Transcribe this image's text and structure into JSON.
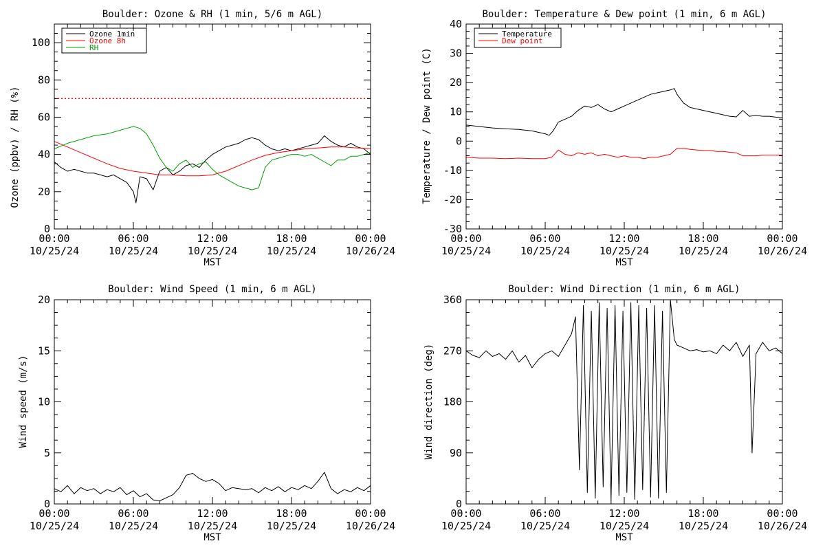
{
  "figure": {
    "x_ticks": [
      "00:00",
      "06:00",
      "12:00",
      "18:00",
      "00:00"
    ],
    "x_tick_dates": [
      "10/25/24",
      "10/25/24",
      "10/25/24",
      "10/25/24",
      "10/26/24"
    ],
    "x_label": "MST"
  },
  "colors": {
    "black": "#000000",
    "red": "#ff0000",
    "green": "#00a000"
  },
  "chart_data": [
    {
      "type": "line",
      "title": "Boulder: Ozone & RH (1 min, 5/6 m AGL)",
      "xlabel": "MST",
      "ylabel": "Ozone (ppbv) / RH (%)",
      "xlim": [
        0,
        24
      ],
      "ylim": [
        0,
        110
      ],
      "yticks": [
        0,
        20,
        40,
        60,
        80,
        100
      ],
      "legend": "top-left",
      "reference_line": {
        "y": 70,
        "style": "dotted",
        "color": "#ff0000"
      },
      "series": [
        {
          "name": "Ozone 1min",
          "color": "#000000",
          "x": [
            0,
            0.5,
            1,
            1.5,
            2,
            2.5,
            3,
            3.5,
            4,
            4.5,
            5,
            5.5,
            6,
            6.2,
            6.5,
            7,
            7.5,
            8,
            8.5,
            9,
            9.5,
            10,
            10.5,
            11,
            11.5,
            12,
            12.5,
            13,
            13.5,
            14,
            14.5,
            15,
            15.5,
            16,
            16.5,
            17,
            17.5,
            18,
            18.5,
            19,
            19.5,
            20,
            20.5,
            21,
            21.5,
            22,
            22.5,
            23,
            23.5,
            24
          ],
          "values": [
            36,
            33,
            31,
            32,
            31,
            30,
            30,
            29,
            28,
            29,
            27,
            25,
            20,
            14,
            28,
            27,
            21,
            31,
            33,
            29,
            31,
            34,
            35,
            33,
            37,
            40,
            42,
            44,
            45,
            46,
            48,
            49,
            48,
            45,
            43,
            42,
            43,
            42,
            43,
            44,
            45,
            46,
            50,
            47,
            45,
            44,
            46,
            44,
            43,
            40
          ]
        },
        {
          "name": "Ozone 8h",
          "color": "#ff0000",
          "x": [
            0,
            1,
            2,
            3,
            4,
            5,
            6,
            7,
            8,
            9,
            10,
            11,
            12,
            13,
            14,
            15,
            16,
            17,
            18,
            19,
            20,
            21,
            22,
            23,
            24
          ],
          "values": [
            47,
            44,
            41,
            38,
            35,
            32.5,
            31,
            30,
            29,
            29,
            28.5,
            28.5,
            29,
            31,
            34,
            37,
            39.5,
            41,
            42,
            43,
            43.5,
            44,
            44,
            43.5,
            43
          ]
        },
        {
          "name": "RH",
          "color": "#00a000",
          "x": [
            0,
            1,
            2,
            3,
            4,
            5,
            5.5,
            6,
            6.5,
            7,
            7.5,
            8,
            8.5,
            9,
            9.5,
            10,
            10.5,
            11,
            11.5,
            12,
            12.5,
            13,
            13.5,
            14,
            14.5,
            15,
            15.5,
            16,
            16.5,
            17,
            17.5,
            18,
            18.5,
            19,
            19.5,
            20,
            20.5,
            21,
            21.5,
            22,
            22.5,
            23,
            23.5,
            24
          ],
          "values": [
            43,
            46,
            48,
            50,
            51,
            53,
            54,
            55,
            54,
            51,
            45,
            38,
            33,
            31,
            35,
            37,
            33,
            35,
            36,
            32,
            29,
            27,
            25,
            23,
            22,
            21,
            22,
            33,
            37,
            38,
            39,
            40,
            40,
            39,
            40,
            38,
            36,
            34,
            37,
            37,
            39,
            39,
            40,
            41
          ]
        }
      ]
    },
    {
      "type": "line",
      "title": "Boulder: Temperature & Dew point (1 min, 6 m AGL)",
      "xlabel": "MST",
      "ylabel": "Temperature / Dew point (C)",
      "xlim": [
        0,
        24
      ],
      "ylim": [
        -30,
        40
      ],
      "yticks": [
        -30,
        -20,
        -10,
        0,
        10,
        20,
        30,
        40
      ],
      "legend": "top-left",
      "series": [
        {
          "name": "Temperature",
          "color": "#000000",
          "x": [
            0,
            1,
            2,
            3,
            4,
            5,
            6,
            6.3,
            6.6,
            7,
            7.5,
            8,
            8.5,
            9,
            9.5,
            10,
            10.5,
            11,
            11.5,
            12,
            12.5,
            13,
            13.5,
            14,
            14.5,
            15,
            15.5,
            15.8,
            16,
            16.5,
            17,
            17.5,
            18,
            18.5,
            19,
            19.5,
            20,
            20.5,
            21,
            21.5,
            22,
            22.5,
            23,
            23.5,
            24
          ],
          "values": [
            5.5,
            5,
            4.5,
            4.2,
            4,
            3.5,
            2.5,
            2,
            3.5,
            6.5,
            7.5,
            8.5,
            10.5,
            12,
            11.5,
            12.5,
            11,
            10,
            11,
            12,
            13,
            14,
            15,
            16,
            16.5,
            17,
            17.5,
            18,
            16,
            13,
            11.5,
            11,
            10.5,
            10,
            9.5,
            9,
            8.5,
            8.3,
            10.5,
            8.5,
            8.8,
            8.5,
            8.5,
            8.2,
            8
          ]
        },
        {
          "name": "Dew point",
          "color": "#ff0000",
          "x": [
            0,
            1,
            2,
            3,
            4,
            5,
            6,
            6.5,
            7,
            7.5,
            8,
            8.5,
            9,
            9.5,
            10,
            10.5,
            11,
            11.5,
            12,
            12.5,
            13,
            13.5,
            14,
            14.5,
            15,
            15.5,
            16,
            16.5,
            17,
            17.5,
            18,
            18.5,
            19,
            19.5,
            20,
            20.5,
            21,
            21.5,
            22,
            22.5,
            23,
            23.5,
            24
          ],
          "values": [
            -5.5,
            -5.8,
            -5.8,
            -6,
            -5.8,
            -6,
            -6,
            -5.5,
            -3,
            -4.5,
            -5,
            -4,
            -4.5,
            -4,
            -5,
            -4.5,
            -5,
            -5.5,
            -5,
            -5.5,
            -5.5,
            -6,
            -5.5,
            -5.5,
            -5,
            -4.5,
            -2.5,
            -2.5,
            -2.8,
            -3,
            -3.2,
            -3.2,
            -3.5,
            -3.5,
            -3.8,
            -4,
            -5,
            -5,
            -5,
            -4.8,
            -4.8,
            -4.8,
            -4.8
          ]
        }
      ]
    },
    {
      "type": "line",
      "title": "Boulder: Wind Speed (1 min, 6 m AGL)",
      "xlabel": "MST",
      "ylabel": "Wind speed (m/s)",
      "xlim": [
        0,
        24
      ],
      "ylim": [
        0,
        20
      ],
      "yticks": [
        0,
        5,
        10,
        15,
        20
      ],
      "series": [
        {
          "color": "#000000",
          "x": [
            0,
            0.5,
            1,
            1.5,
            2,
            2.5,
            3,
            3.5,
            4,
            4.5,
            5,
            5.5,
            6,
            6.5,
            7,
            7.5,
            8,
            8.5,
            9,
            9.5,
            10,
            10.5,
            11,
            11.5,
            12,
            12.5,
            13,
            13.5,
            14,
            14.5,
            15,
            15.5,
            16,
            16.5,
            17,
            17.5,
            18,
            18.5,
            19,
            19.5,
            20,
            20.5,
            21,
            21.5,
            22,
            22.5,
            23,
            23.5,
            24
          ],
          "values": [
            1.5,
            1.2,
            1.8,
            1.0,
            1.6,
            1.3,
            1.5,
            1.0,
            1.4,
            1.2,
            1.6,
            0.9,
            1.3,
            0.7,
            1.0,
            0.4,
            0.3,
            0.6,
            0.9,
            1.6,
            2.8,
            3.0,
            2.5,
            2.2,
            2.4,
            2.0,
            1.3,
            1.6,
            1.5,
            1.4,
            1.5,
            1.1,
            1.6,
            1.3,
            1.7,
            1.2,
            1.6,
            1.4,
            1.8,
            1.5,
            2.2,
            3.1,
            1.5,
            1.0,
            1.4,
            1.2,
            1.6,
            1.3,
            1.8
          ]
        }
      ]
    },
    {
      "type": "line",
      "title": "Boulder: Wind Direction (1 min, 6 m AGL)",
      "xlabel": "MST",
      "ylabel": "Wind direction (deg)",
      "xlim": [
        0,
        24
      ],
      "ylim": [
        0,
        360
      ],
      "yticks": [
        0,
        90,
        180,
        270,
        360
      ],
      "series": [
        {
          "color": "#000000",
          "x": [
            0,
            0.5,
            1,
            1.5,
            2,
            2.5,
            3,
            3.5,
            4,
            4.5,
            5,
            5.5,
            6,
            6.5,
            7,
            7.5,
            8,
            8.3,
            8.6,
            8.9,
            9.2,
            9.5,
            9.8,
            10.1,
            10.4,
            10.7,
            11,
            11.3,
            11.6,
            11.9,
            12.2,
            12.5,
            12.8,
            13.1,
            13.4,
            13.7,
            14,
            14.3,
            14.6,
            14.9,
            15.2,
            15.5,
            15.8,
            16,
            16.5,
            17,
            17.5,
            18,
            18.5,
            19,
            19.5,
            20,
            20.5,
            21,
            21.5,
            21.7,
            22,
            22.5,
            23,
            23.5,
            24
          ],
          "values": [
            270,
            262,
            258,
            270,
            260,
            265,
            255,
            270,
            250,
            262,
            240,
            255,
            265,
            270,
            260,
            280,
            300,
            330,
            60,
            350,
            20,
            340,
            10,
            355,
            30,
            345,
            5,
            350,
            15,
            340,
            20,
            355,
            8,
            350,
            25,
            345,
            12,
            350,
            10,
            340,
            20,
            360,
            290,
            280,
            275,
            270,
            272,
            268,
            270,
            265,
            280,
            270,
            285,
            260,
            280,
            90,
            265,
            285,
            270,
            275,
            265
          ]
        }
      ]
    }
  ]
}
